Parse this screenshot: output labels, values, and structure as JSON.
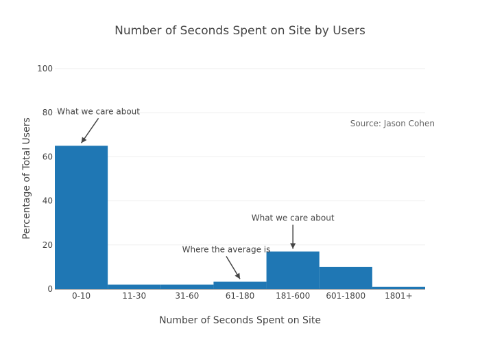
{
  "chart_data": {
    "type": "bar",
    "title": "Number of Seconds Spent on Site by Users",
    "xlabel": "Number of Seconds Spent on Site",
    "ylabel": "Percentage of Total Users",
    "categories": [
      "0-10",
      "11-30",
      "31-60",
      "61-180",
      "181-600",
      "601-1800",
      "1801+"
    ],
    "values": [
      65,
      2,
      2,
      3.3,
      17,
      10,
      1
    ],
    "ylim": [
      0,
      100
    ],
    "yticks": [
      0,
      20,
      40,
      60,
      80,
      100
    ],
    "grid": true,
    "bar_color": "#1f77b4",
    "annotations": [
      {
        "text": "What we care about",
        "category": "0-10",
        "value": 65
      },
      {
        "text": "Where the average is",
        "category": "61-180",
        "value": 3.3
      },
      {
        "text": "What we care about",
        "category": "181-600",
        "value": 17
      }
    ],
    "source_note": "Source: Jason Cohen"
  }
}
